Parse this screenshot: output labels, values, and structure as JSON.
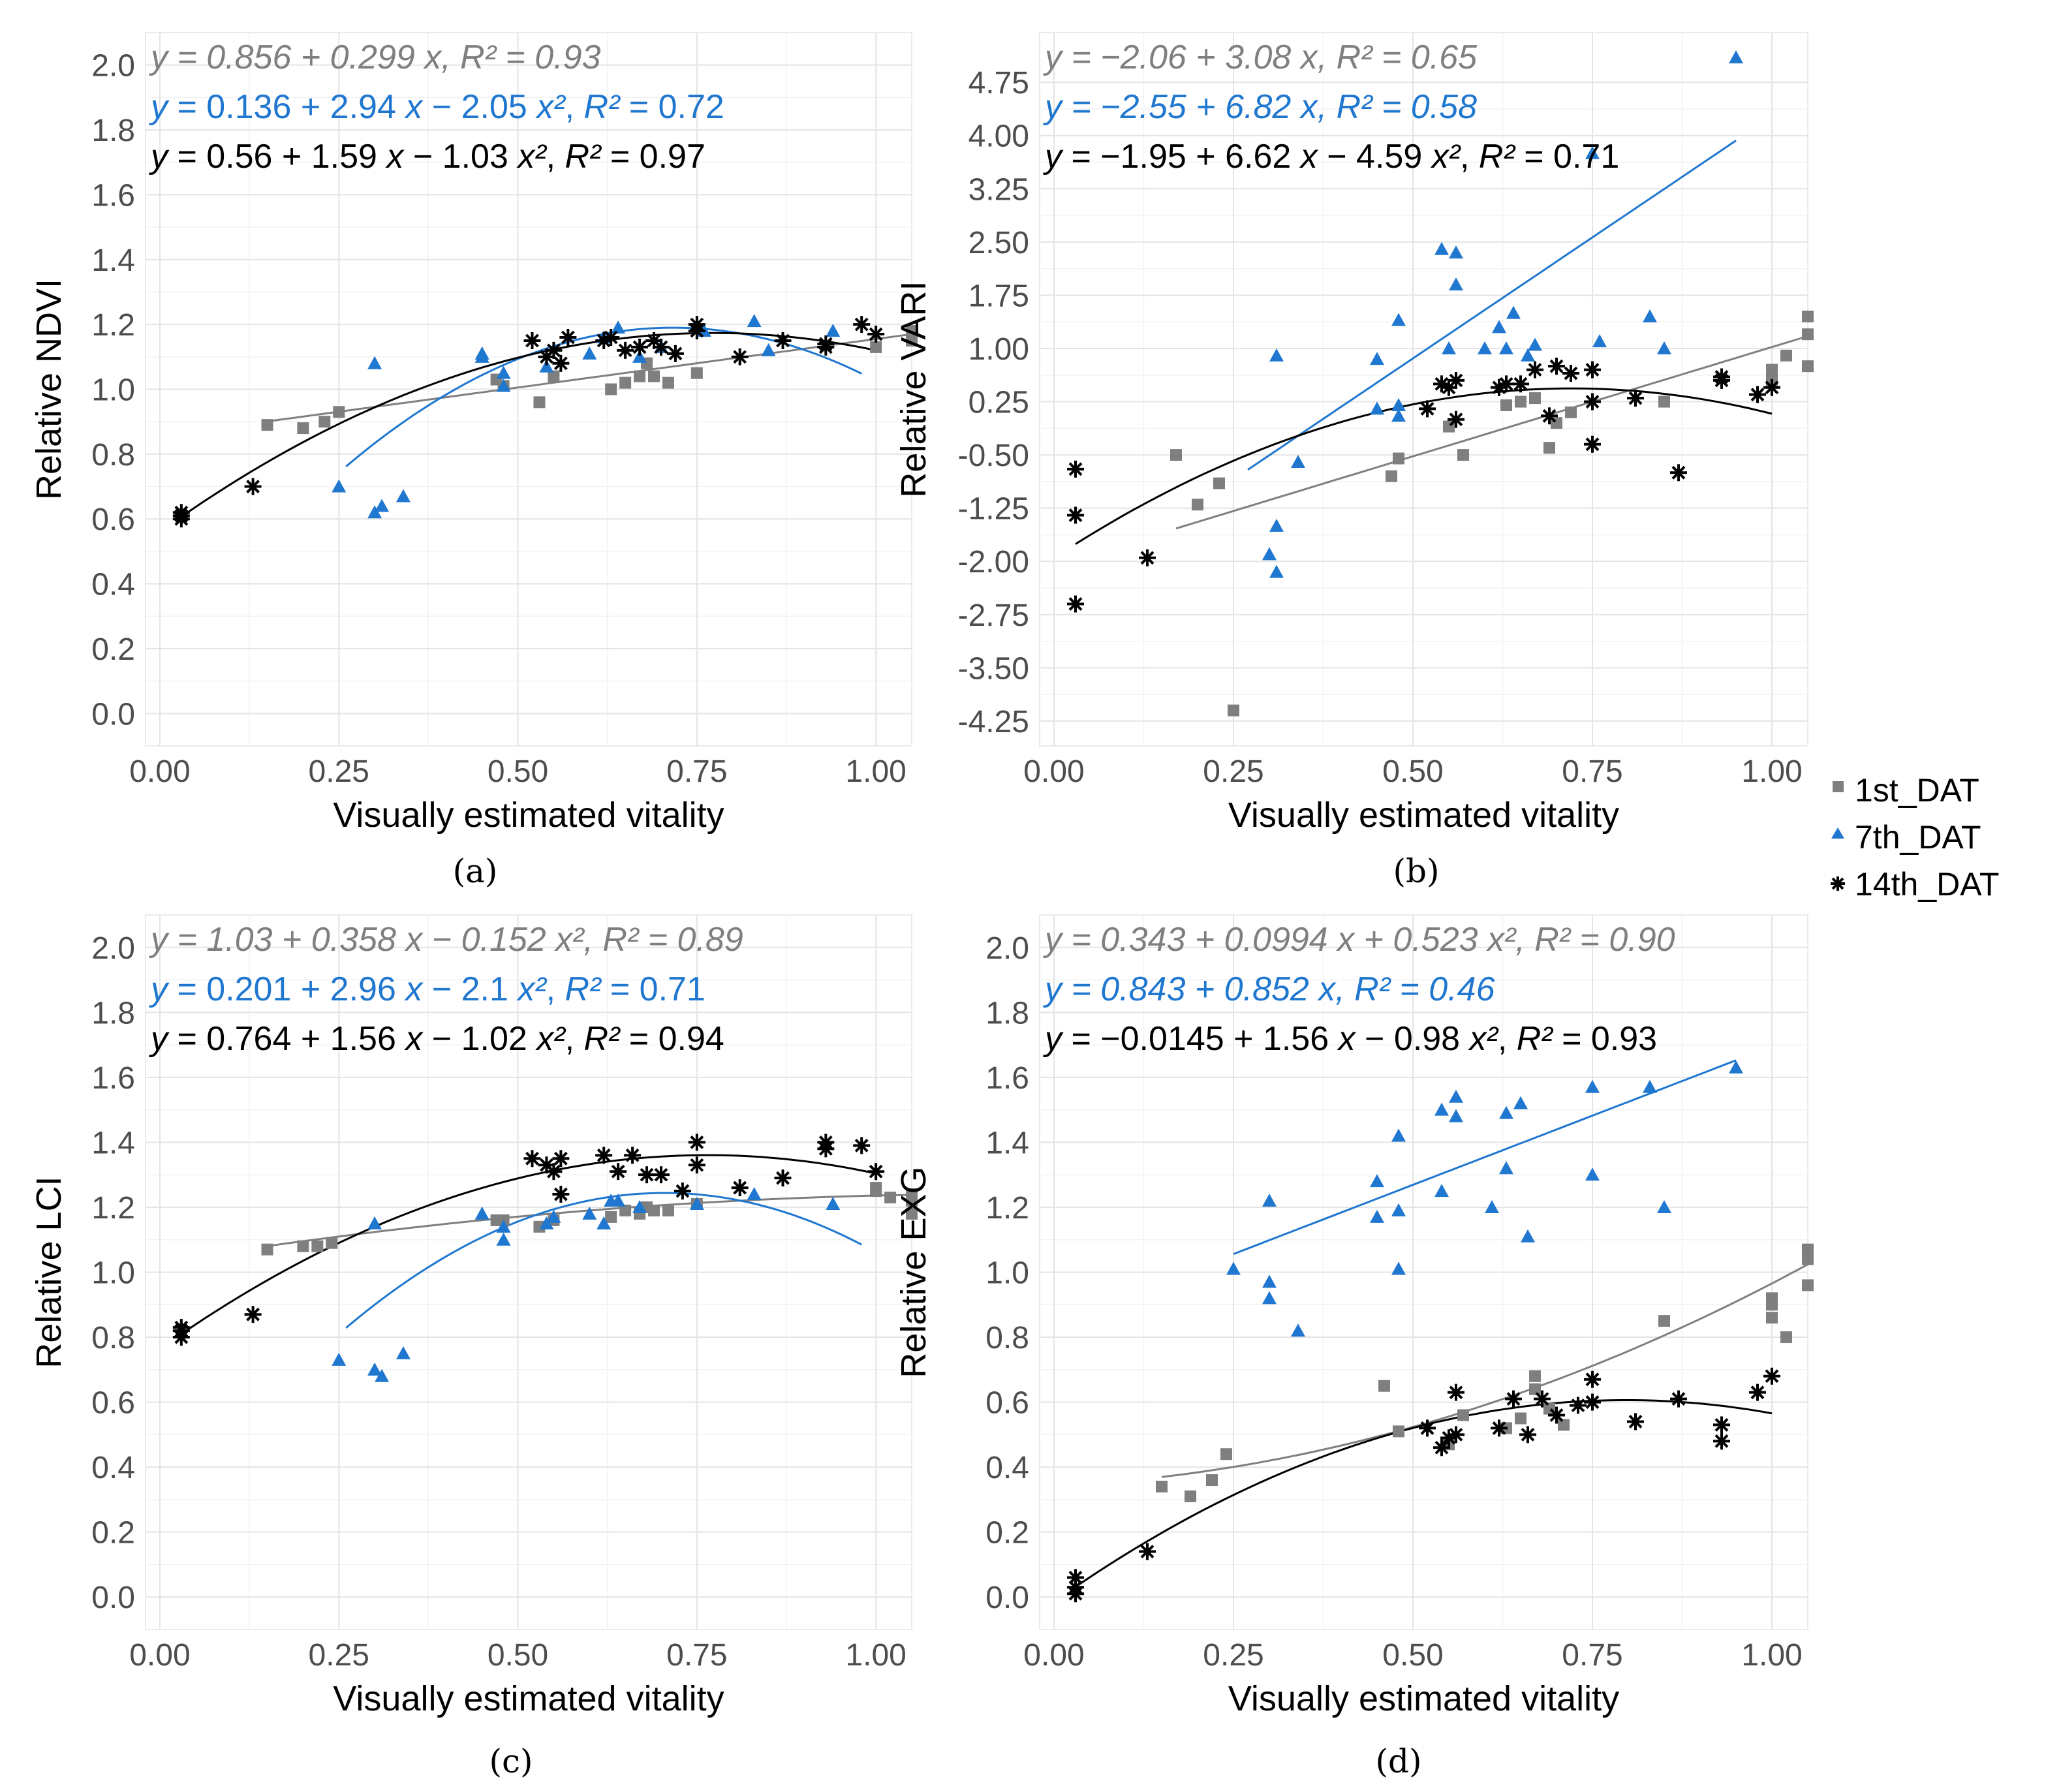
{
  "legend": {
    "items": [
      {
        "label": "1st_DAT",
        "color": "#7f7f7f",
        "marker": "square"
      },
      {
        "label": "7th_DAT",
        "color": "#1f77d0",
        "marker": "triangle"
      },
      {
        "label": "14th_DAT",
        "color": "#000000",
        "marker": "asterisk"
      }
    ]
  },
  "chart_data": [
    {
      "type": "scatter",
      "panel": "(a)",
      "xlabel": "Visually estimated vitality",
      "ylabel": "Relative NDVI",
      "xlim": [
        -0.02,
        1.05
      ],
      "ylim": [
        -0.1,
        2.1
      ],
      "xticks": [
        0.0,
        0.25,
        0.5,
        0.75,
        1.0
      ],
      "xtick_labels": [
        "0.00",
        "0.25",
        "0.50",
        "0.75",
        "1.00"
      ],
      "yticks": [
        0.0,
        0.2,
        0.4,
        0.6,
        0.8,
        1.0,
        1.2,
        1.4,
        1.6,
        1.8,
        2.0
      ],
      "ytick_labels": [
        "0.0",
        "0.2",
        "0.4",
        "0.6",
        "0.8",
        "1.0",
        "1.2",
        "1.4",
        "1.6",
        "1.8",
        "2.0"
      ],
      "equations": [
        {
          "text": "y = 0.856 + 0.299 x, R² = 0.93",
          "color": "#7f7f7f",
          "italic": true
        },
        {
          "text": "y = 0.136 + 2.94 x − 2.05 x², R² = 0.72",
          "color": "#1f77d0",
          "italic": false
        },
        {
          "text": "y = 0.56 + 1.59 x − 1.03 x², R² = 0.97",
          "color": "#000000",
          "italic": false
        }
      ],
      "series": [
        {
          "name": "1st_DAT",
          "x": [
            0.15,
            0.2,
            0.23,
            0.25,
            0.47,
            0.48,
            0.53,
            0.55,
            0.63,
            0.65,
            0.67,
            0.68,
            0.69,
            0.71,
            0.75,
            1.0,
            1.05,
            1.05
          ],
          "y": [
            0.89,
            0.88,
            0.9,
            0.93,
            1.03,
            1.01,
            0.96,
            1.04,
            1.0,
            1.02,
            1.04,
            1.08,
            1.04,
            1.02,
            1.05,
            1.13,
            1.15,
            1.18
          ],
          "fit": [
            0.856,
            0.299,
            0
          ],
          "fit_range": [
            0.15,
            1.05
          ]
        },
        {
          "name": "7th_DAT",
          "x": [
            0.25,
            0.3,
            0.3,
            0.31,
            0.34,
            0.45,
            0.45,
            0.48,
            0.48,
            0.54,
            0.6,
            0.62,
            0.64,
            0.67,
            0.7,
            0.76,
            0.83,
            0.85,
            0.94
          ],
          "y": [
            0.7,
            1.08,
            0.62,
            0.64,
            0.67,
            1.1,
            1.11,
            1.01,
            1.05,
            1.07,
            1.11,
            1.16,
            1.19,
            1.1,
            1.13,
            1.18,
            1.21,
            1.12,
            1.18
          ],
          "fit": [
            0.136,
            2.94,
            -2.05
          ],
          "fit_range": [
            0.26,
            0.98
          ]
        },
        {
          "name": "14th_DAT",
          "x": [
            0.03,
            0.03,
            0.03,
            0.13,
            0.52,
            0.54,
            0.55,
            0.56,
            0.57,
            0.62,
            0.63,
            0.65,
            0.67,
            0.69,
            0.7,
            0.72,
            0.75,
            0.75,
            0.81,
            0.87,
            0.93,
            0.93,
            0.98,
            1.0
          ],
          "y": [
            0.6,
            0.61,
            0.62,
            0.7,
            1.15,
            1.1,
            1.12,
            1.08,
            1.16,
            1.15,
            1.16,
            1.12,
            1.13,
            1.15,
            1.13,
            1.11,
            1.18,
            1.2,
            1.1,
            1.15,
            1.13,
            1.14,
            1.2,
            1.17
          ],
          "fit": [
            0.56,
            1.59,
            -1.03
          ],
          "fit_range": [
            0.03,
            1.0
          ]
        }
      ]
    },
    {
      "type": "scatter",
      "panel": "(b)",
      "xlabel": "Visually estimated vitality",
      "ylabel": "Relative VARI",
      "xlim": [
        -0.02,
        1.05
      ],
      "ylim": [
        -4.6,
        5.45
      ],
      "xticks": [
        0.0,
        0.25,
        0.5,
        0.75,
        1.0
      ],
      "xtick_labels": [
        "0.00",
        "0.25",
        "0.50",
        "0.75",
        "1.00"
      ],
      "yticks": [
        -4.25,
        -3.5,
        -2.75,
        -2.0,
        -1.25,
        -0.5,
        0.25,
        1.0,
        1.75,
        2.5,
        3.25,
        4.0,
        4.75
      ],
      "ytick_labels": [
        "-4.25",
        "-3.50",
        "-2.75",
        "-2.00",
        "-1.25",
        "-0.50",
        "0.25",
        "1.00",
        "1.75",
        "2.50",
        "3.25",
        "4.00",
        "4.75"
      ],
      "equations": [
        {
          "text": "y = −2.06 + 3.08 x, R² = 0.65",
          "color": "#7f7f7f",
          "italic": true
        },
        {
          "text": "y = −2.55 + 6.82 x, R² = 0.58",
          "color": "#1f77d0",
          "italic": true
        },
        {
          "text": "y = −1.95 + 6.62 x − 4.59 x², R² = 0.71",
          "color": "#000000",
          "italic": false
        }
      ],
      "series": [
        {
          "name": "1st_DAT",
          "x": [
            0.17,
            0.2,
            0.23,
            0.25,
            0.47,
            0.48,
            0.55,
            0.57,
            0.63,
            0.65,
            0.67,
            0.69,
            0.7,
            0.72,
            0.85,
            1.0,
            1.0,
            1.02,
            1.05,
            1.05,
            1.05
          ],
          "y": [
            -0.5,
            -1.2,
            -0.9,
            -4.1,
            -0.8,
            -0.55,
            -0.1,
            -0.5,
            0.2,
            0.25,
            0.3,
            -0.4,
            -0.05,
            0.1,
            0.25,
            0.55,
            0.7,
            0.9,
            0.75,
            1.2,
            1.45
          ],
          "fit": [
            -2.06,
            3.08,
            0
          ],
          "fit_range": [
            0.17,
            1.05
          ]
        },
        {
          "name": "7th_DAT",
          "x": [
            0.3,
            0.31,
            0.31,
            0.31,
            0.34,
            0.45,
            0.45,
            0.48,
            0.48,
            0.48,
            0.54,
            0.55,
            0.56,
            0.56,
            0.6,
            0.62,
            0.63,
            0.64,
            0.66,
            0.67,
            0.75,
            0.76,
            0.83,
            0.85,
            0.95
          ],
          "y": [
            -1.9,
            0.9,
            -1.5,
            -2.15,
            -0.6,
            0.85,
            0.15,
            1.4,
            0.2,
            0.05,
            2.4,
            1.0,
            2.35,
            1.9,
            1.0,
            1.3,
            1.0,
            1.5,
            0.9,
            1.05,
            3.75,
            1.1,
            1.45,
            1.0,
            5.1
          ],
          "fit": [
            -2.55,
            6.82,
            0
          ],
          "fit_range": [
            0.27,
            0.95
          ]
        },
        {
          "name": "14th_DAT",
          "x": [
            0.03,
            0.03,
            0.03,
            0.13,
            0.52,
            0.54,
            0.55,
            0.56,
            0.56,
            0.62,
            0.63,
            0.65,
            0.67,
            0.69,
            0.7,
            0.72,
            0.75,
            0.75,
            0.75,
            0.81,
            0.87,
            0.93,
            0.93,
            0.98,
            1.0
          ],
          "y": [
            -0.7,
            -1.35,
            -2.6,
            -1.95,
            0.15,
            0.5,
            0.45,
            0.55,
            0.0,
            0.45,
            0.5,
            0.5,
            0.7,
            0.05,
            0.75,
            0.65,
            -0.35,
            0.7,
            0.25,
            0.3,
            -0.75,
            0.6,
            0.55,
            0.35,
            0.45
          ],
          "fit": [
            -1.95,
            6.62,
            -4.59
          ],
          "fit_range": [
            0.03,
            1.0
          ]
        }
      ]
    },
    {
      "type": "scatter",
      "panel": "(c)",
      "xlabel": "Visually estimated vitality",
      "ylabel": "Relative LCI",
      "xlim": [
        -0.02,
        1.05
      ],
      "ylim": [
        -0.1,
        2.1
      ],
      "xticks": [
        0.0,
        0.25,
        0.5,
        0.75,
        1.0
      ],
      "xtick_labels": [
        "0.00",
        "0.25",
        "0.50",
        "0.75",
        "1.00"
      ],
      "yticks": [
        0.0,
        0.2,
        0.4,
        0.6,
        0.8,
        1.0,
        1.2,
        1.4,
        1.6,
        1.8,
        2.0
      ],
      "ytick_labels": [
        "0.0",
        "0.2",
        "0.4",
        "0.6",
        "0.8",
        "1.0",
        "1.2",
        "1.4",
        "1.6",
        "1.8",
        "2.0"
      ],
      "equations": [
        {
          "text": "y = 1.03 + 0.358 x − 0.152 x², R² = 0.89",
          "color": "#7f7f7f",
          "italic": true
        },
        {
          "text": "y = 0.201 + 2.96 x − 2.1 x², R² = 0.71",
          "color": "#1f77d0",
          "italic": false
        },
        {
          "text": "y = 0.764 + 1.56 x − 1.02 x², R² = 0.94",
          "color": "#000000",
          "italic": false
        }
      ],
      "series": [
        {
          "name": "1st_DAT",
          "x": [
            0.15,
            0.2,
            0.22,
            0.24,
            0.47,
            0.48,
            0.53,
            0.55,
            0.63,
            0.65,
            0.67,
            0.68,
            0.69,
            0.71,
            0.75,
            1.0,
            1.0,
            1.02,
            1.05,
            1.05,
            1.05
          ],
          "y": [
            1.07,
            1.08,
            1.08,
            1.09,
            1.16,
            1.16,
            1.14,
            1.16,
            1.17,
            1.19,
            1.18,
            1.2,
            1.19,
            1.19,
            1.21,
            1.25,
            1.26,
            1.23,
            1.24,
            1.22,
            1.18
          ],
          "fit": [
            1.03,
            0.358,
            -0.152
          ],
          "fit_range": [
            0.15,
            1.05
          ]
        },
        {
          "name": "7th_DAT",
          "x": [
            0.25,
            0.3,
            0.3,
            0.31,
            0.34,
            0.45,
            0.48,
            0.48,
            0.54,
            0.55,
            0.6,
            0.62,
            0.63,
            0.64,
            0.67,
            0.75,
            0.83,
            0.94
          ],
          "y": [
            0.73,
            1.15,
            0.7,
            0.68,
            0.75,
            1.18,
            1.14,
            1.1,
            1.15,
            1.17,
            1.18,
            1.15,
            1.22,
            1.22,
            1.2,
            1.21,
            1.24,
            1.21
          ],
          "fit": [
            0.201,
            2.96,
            -2.1
          ],
          "fit_range": [
            0.26,
            0.98
          ]
        },
        {
          "name": "14th_DAT",
          "x": [
            0.03,
            0.03,
            0.03,
            0.13,
            0.52,
            0.54,
            0.55,
            0.56,
            0.56,
            0.62,
            0.64,
            0.66,
            0.68,
            0.7,
            0.73,
            0.75,
            0.75,
            0.81,
            0.87,
            0.93,
            0.93,
            0.98,
            1.0
          ],
          "y": [
            0.8,
            0.82,
            0.83,
            0.87,
            1.35,
            1.33,
            1.31,
            1.35,
            1.24,
            1.36,
            1.31,
            1.36,
            1.3,
            1.3,
            1.25,
            1.33,
            1.4,
            1.26,
            1.29,
            1.38,
            1.4,
            1.39,
            1.31
          ],
          "fit": [
            0.764,
            1.56,
            -1.02
          ],
          "fit_range": [
            0.03,
            1.0
          ]
        }
      ]
    },
    {
      "type": "scatter",
      "panel": "(d)",
      "xlabel": "Visually estimated vitality",
      "ylabel": "Relative EXG",
      "xlim": [
        -0.02,
        1.05
      ],
      "ylim": [
        -0.1,
        2.1
      ],
      "xticks": [
        0.0,
        0.25,
        0.5,
        0.75,
        1.0
      ],
      "xtick_labels": [
        "0.00",
        "0.25",
        "0.50",
        "0.75",
        "1.00"
      ],
      "yticks": [
        0.0,
        0.2,
        0.4,
        0.6,
        0.8,
        1.0,
        1.2,
        1.4,
        1.6,
        1.8,
        2.0
      ],
      "ytick_labels": [
        "0.0",
        "0.2",
        "0.4",
        "0.6",
        "0.8",
        "1.0",
        "1.2",
        "1.4",
        "1.6",
        "1.8",
        "2.0"
      ],
      "equations": [
        {
          "text": "y = 0.343 + 0.0994 x + 0.523 x², R² = 0.90",
          "color": "#7f7f7f",
          "italic": true
        },
        {
          "text": "y = 0.843 + 0.852 x, R² = 0.46",
          "color": "#1f77d0",
          "italic": true
        },
        {
          "text": "y = −0.0145 + 1.56 x − 0.98 x², R² = 0.93",
          "color": "#000000",
          "italic": false
        }
      ],
      "series": [
        {
          "name": "1st_DAT",
          "x": [
            0.15,
            0.19,
            0.22,
            0.24,
            0.46,
            0.48,
            0.55,
            0.57,
            0.63,
            0.65,
            0.67,
            0.67,
            0.69,
            0.71,
            0.85,
            1.0,
            1.0,
            1.0,
            1.02,
            1.05,
            1.05,
            1.05
          ],
          "y": [
            0.34,
            0.31,
            0.36,
            0.44,
            0.65,
            0.51,
            0.47,
            0.56,
            0.52,
            0.55,
            0.64,
            0.68,
            0.58,
            0.53,
            0.85,
            0.86,
            0.9,
            0.92,
            0.8,
            0.96,
            1.04,
            1.07
          ],
          "fit": [
            0.343,
            0.0994,
            0.523
          ],
          "fit_range": [
            0.15,
            1.05
          ]
        },
        {
          "name": "7th_DAT",
          "x": [
            0.25,
            0.3,
            0.3,
            0.3,
            0.34,
            0.45,
            0.45,
            0.48,
            0.48,
            0.48,
            0.54,
            0.54,
            0.56,
            0.56,
            0.61,
            0.63,
            0.63,
            0.65,
            0.66,
            0.75,
            0.75,
            0.83,
            0.85,
            0.95
          ],
          "y": [
            1.01,
            1.22,
            0.97,
            0.92,
            0.82,
            1.28,
            1.17,
            1.42,
            1.19,
            1.01,
            1.25,
            1.5,
            1.54,
            1.48,
            1.2,
            1.32,
            1.49,
            1.52,
            1.11,
            1.57,
            1.3,
            1.57,
            1.2,
            1.63
          ],
          "fit": [
            0.843,
            0.852,
            0
          ],
          "fit_range": [
            0.25,
            0.95
          ]
        },
        {
          "name": "14th_DAT",
          "x": [
            0.03,
            0.03,
            0.03,
            0.13,
            0.52,
            0.54,
            0.55,
            0.56,
            0.56,
            0.62,
            0.64,
            0.66,
            0.68,
            0.7,
            0.73,
            0.75,
            0.75,
            0.81,
            0.87,
            0.93,
            0.93,
            0.98,
            1.0
          ],
          "y": [
            0.01,
            0.03,
            0.06,
            0.14,
            0.52,
            0.46,
            0.49,
            0.63,
            0.5,
            0.52,
            0.61,
            0.5,
            0.61,
            0.56,
            0.59,
            0.6,
            0.67,
            0.54,
            0.61,
            0.53,
            0.48,
            0.63,
            0.68
          ],
          "fit": [
            -0.0145,
            1.56,
            -0.98
          ],
          "fit_range": [
            0.03,
            1.0
          ]
        }
      ]
    }
  ]
}
